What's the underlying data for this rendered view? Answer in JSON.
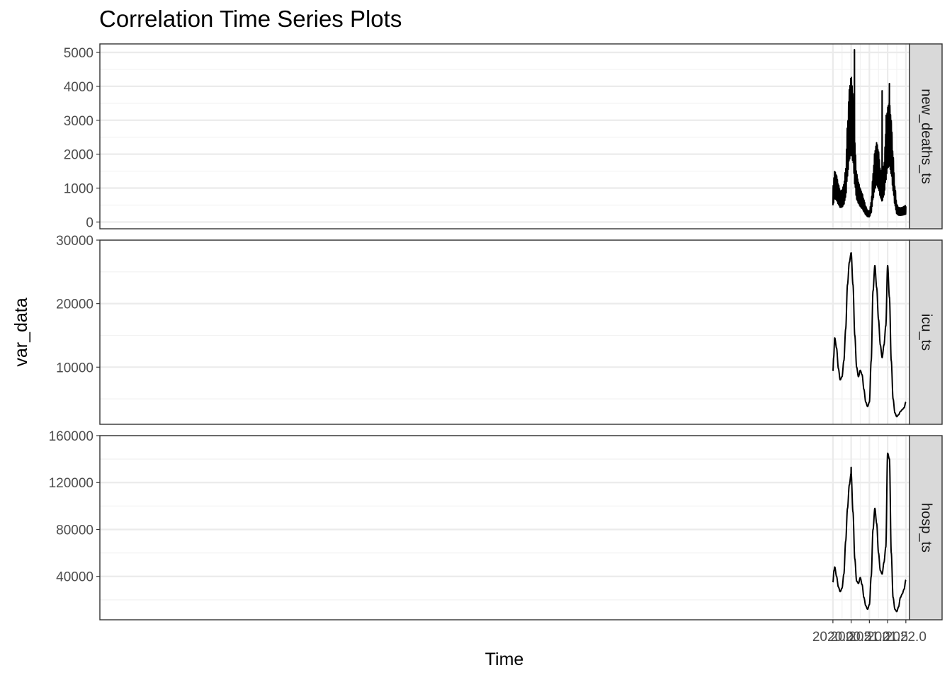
{
  "chart_data": {
    "type": "line",
    "title": "Correlation Time Series Plots",
    "xlabel": "Time",
    "ylabel": "var_data",
    "xlim": [
      1999.9,
      2022.1
    ],
    "x_ticks": [
      2020.0,
      2020.5,
      2021.0,
      2021.5,
      2022.0
    ],
    "x_tick_labels": [
      "2020.0",
      "2020.5",
      "2021.0",
      "2021.5",
      "2022.0"
    ],
    "grid": true,
    "theme": "bw",
    "line_color": "#000000",
    "panels": [
      {
        "name": "new_deaths_ts",
        "ylim": [
          -200,
          5250
        ],
        "y_ticks": [
          0,
          1000,
          2000,
          3000,
          4000,
          5000
        ],
        "y_tick_labels": [
          "0",
          "1000",
          "2000",
          "3000",
          "4000",
          "5000"
        ],
        "weekly_amplitude": 0.3,
        "points": [
          [
            2020.0,
            800
          ],
          [
            2020.05,
            1150
          ],
          [
            2020.1,
            1050
          ],
          [
            2020.15,
            850
          ],
          [
            2020.2,
            700
          ],
          [
            2020.25,
            720
          ],
          [
            2020.3,
            850
          ],
          [
            2020.35,
            1200
          ],
          [
            2020.4,
            2200
          ],
          [
            2020.45,
            3000
          ],
          [
            2020.5,
            3300
          ],
          [
            2020.55,
            2900
          ],
          [
            2020.6,
            1800
          ],
          [
            2020.65,
            1100
          ],
          [
            2020.7,
            900
          ],
          [
            2020.75,
            750
          ],
          [
            2020.8,
            650
          ],
          [
            2020.85,
            500
          ],
          [
            2020.9,
            350
          ],
          [
            2020.95,
            260
          ],
          [
            2021.0,
            250
          ],
          [
            2021.05,
            450
          ],
          [
            2021.1,
            1100
          ],
          [
            2021.15,
            1600
          ],
          [
            2021.2,
            1800
          ],
          [
            2021.25,
            1600
          ],
          [
            2021.3,
            1200
          ],
          [
            2021.35,
            1000
          ],
          [
            2021.4,
            1300
          ],
          [
            2021.45,
            2000
          ],
          [
            2021.5,
            2600
          ],
          [
            2021.55,
            2700
          ],
          [
            2021.6,
            2300
          ],
          [
            2021.65,
            1500
          ],
          [
            2021.7,
            800
          ],
          [
            2021.75,
            400
          ],
          [
            2021.8,
            330
          ],
          [
            2021.85,
            320
          ],
          [
            2021.9,
            330
          ],
          [
            2021.95,
            350
          ],
          [
            2022.0,
            380
          ]
        ],
        "spikes": [
          [
            2020.59,
            5080
          ],
          [
            2021.35,
            3870
          ],
          [
            2021.46,
            3150
          ],
          [
            2021.55,
            4080
          ]
        ]
      },
      {
        "name": "icu_ts",
        "ylim": [
          1000,
          30000
        ],
        "y_ticks": [
          10000,
          20000,
          30000
        ],
        "y_tick_labels": [
          "10000",
          "20000",
          "30000"
        ],
        "weekly_amplitude": 0.0,
        "points": [
          [
            2020.0,
            9400
          ],
          [
            2020.02,
            11500
          ],
          [
            2020.05,
            14600
          ],
          [
            2020.1,
            13000
          ],
          [
            2020.15,
            9800
          ],
          [
            2020.2,
            8000
          ],
          [
            2020.25,
            8500
          ],
          [
            2020.3,
            11000
          ],
          [
            2020.35,
            16000
          ],
          [
            2020.4,
            23000
          ],
          [
            2020.45,
            26500
          ],
          [
            2020.5,
            28000
          ],
          [
            2020.55,
            23000
          ],
          [
            2020.6,
            15000
          ],
          [
            2020.65,
            10000
          ],
          [
            2020.7,
            8500
          ],
          [
            2020.75,
            9500
          ],
          [
            2020.8,
            8800
          ],
          [
            2020.85,
            6500
          ],
          [
            2020.9,
            4500
          ],
          [
            2020.95,
            3800
          ],
          [
            2021.0,
            4500
          ],
          [
            2021.05,
            11000
          ],
          [
            2021.1,
            22000
          ],
          [
            2021.15,
            26000
          ],
          [
            2021.2,
            22500
          ],
          [
            2021.25,
            17500
          ],
          [
            2021.3,
            13500
          ],
          [
            2021.35,
            11500
          ],
          [
            2021.4,
            13500
          ],
          [
            2021.45,
            16500
          ],
          [
            2021.5,
            26000
          ],
          [
            2021.55,
            21000
          ],
          [
            2021.6,
            11000
          ],
          [
            2021.65,
            5000
          ],
          [
            2021.7,
            2800
          ],
          [
            2021.75,
            2200
          ],
          [
            2021.8,
            2500
          ],
          [
            2021.85,
            3000
          ],
          [
            2021.9,
            3300
          ],
          [
            2021.95,
            3600
          ],
          [
            2022.0,
            4500
          ]
        ],
        "spikes": []
      },
      {
        "name": "hosp_ts",
        "ylim": [
          3000,
          160000
        ],
        "y_ticks": [
          40000,
          80000,
          120000,
          160000
        ],
        "y_tick_labels": [
          "40000",
          "80000",
          "120000",
          "160000"
        ],
        "weekly_amplitude": 0.0,
        "points": [
          [
            2020.0,
            35000
          ],
          [
            2020.03,
            45000
          ],
          [
            2020.05,
            48000
          ],
          [
            2020.1,
            40000
          ],
          [
            2020.15,
            31000
          ],
          [
            2020.2,
            27000
          ],
          [
            2020.25,
            30000
          ],
          [
            2020.3,
            42000
          ],
          [
            2020.35,
            70000
          ],
          [
            2020.4,
            98000
          ],
          [
            2020.45,
            118000
          ],
          [
            2020.5,
            128000
          ],
          [
            2020.55,
            95000
          ],
          [
            2020.6,
            55000
          ],
          [
            2020.65,
            36000
          ],
          [
            2020.7,
            34000
          ],
          [
            2020.75,
            39000
          ],
          [
            2020.8,
            33000
          ],
          [
            2020.85,
            22000
          ],
          [
            2020.9,
            15000
          ],
          [
            2020.95,
            12000
          ],
          [
            2021.0,
            16000
          ],
          [
            2021.05,
            40000
          ],
          [
            2021.1,
            80000
          ],
          [
            2021.15,
            98000
          ],
          [
            2021.2,
            85000
          ],
          [
            2021.25,
            60000
          ],
          [
            2021.3,
            45000
          ],
          [
            2021.35,
            42000
          ],
          [
            2021.4,
            52000
          ],
          [
            2021.45,
            65000
          ],
          [
            2021.5,
            145000
          ],
          [
            2021.55,
            140000
          ],
          [
            2021.6,
            60000
          ],
          [
            2021.65,
            22000
          ],
          [
            2021.7,
            12000
          ],
          [
            2021.75,
            10000
          ],
          [
            2021.8,
            14000
          ],
          [
            2021.85,
            22000
          ],
          [
            2021.9,
            25000
          ],
          [
            2021.95,
            29000
          ],
          [
            2022.0,
            37000
          ]
        ],
        "spikes": [
          [
            2020.5,
            133000
          ]
        ]
      }
    ]
  }
}
